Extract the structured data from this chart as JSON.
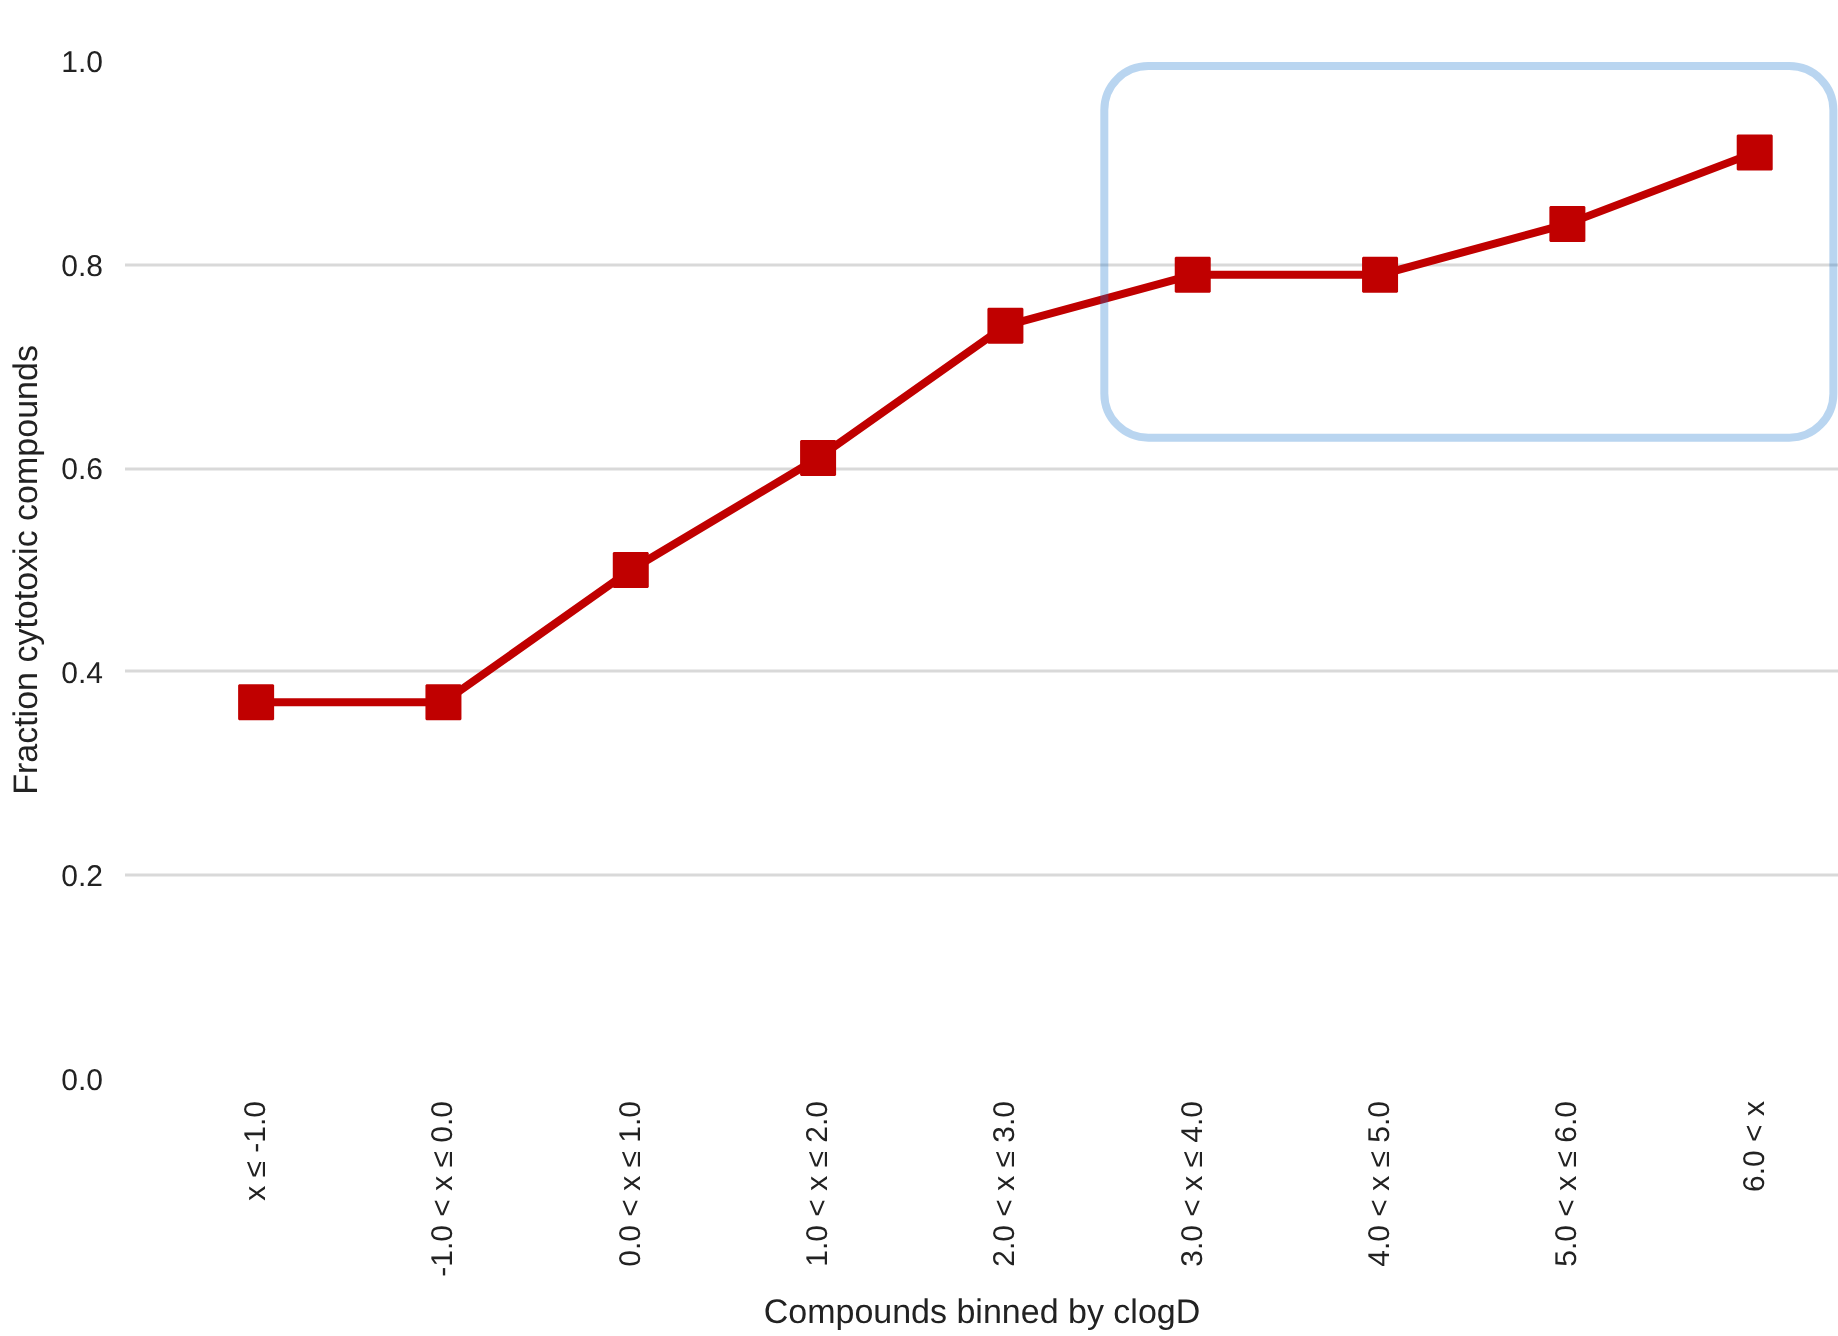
{
  "chart_data": {
    "type": "line",
    "xlabel": "Compounds binned by clogD",
    "ylabel": "Fraction cytotoxic compounds",
    "categories": [
      "x ≤ -1.0",
      "-1.0 < x ≤ 0.0",
      "0.0 < x ≤ 1.0",
      "1.0 < x ≤ 2.0",
      "2.0 < x ≤ 3.0",
      "3.0 < x ≤ 4.0",
      "4.0 < x ≤ 5.0",
      "5.0 < x ≤ 6.0",
      "6.0 < x"
    ],
    "series": [
      {
        "color": "#c00000",
        "values": [
          0.37,
          0.37,
          0.5,
          0.61,
          0.74,
          0.79,
          0.79,
          0.84,
          0.91
        ]
      }
    ],
    "ylim": [
      0,
      1.0
    ],
    "yticks": [
      {
        "value": 0,
        "label": "0.0"
      },
      0.2,
      0.4,
      0.6,
      0.8,
      {
        "value": 1,
        "label": "1.0"
      }
    ],
    "grid": "y",
    "marker": "square",
    "line_style": "solid"
  }
}
